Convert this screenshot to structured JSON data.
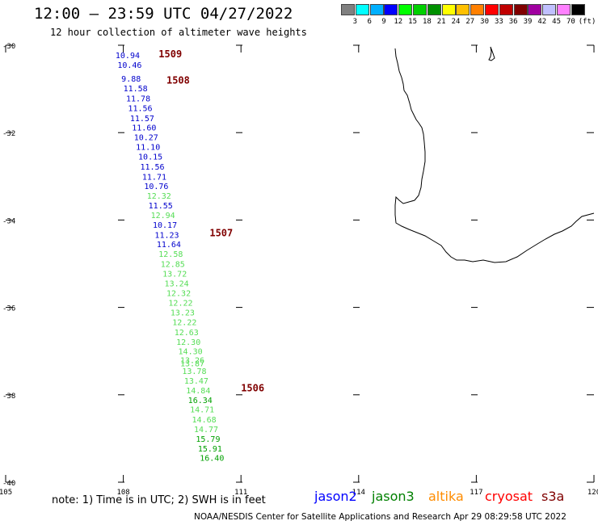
{
  "header": {
    "title": "12:00 – 23:59 UTC 04/27/2022",
    "subtitle": "12 hour collection of altimeter wave heights"
  },
  "legend": {
    "colors": [
      "#808080",
      "#00ffff",
      "#00b0ff",
      "#0000ff",
      "#00ff00",
      "#00d000",
      "#009000",
      "#ffff00",
      "#ffc000",
      "#ff8000",
      "#ff0000",
      "#c00000",
      "#800000",
      "#a000a0",
      "#c0c0ff",
      "#ff80ff",
      "#000000"
    ],
    "labels": [
      "3",
      "6",
      "9",
      "12",
      "15",
      "18",
      "21",
      "24",
      "27",
      "30",
      "33",
      "36",
      "39",
      "42",
      "45",
      "70",
      "(ft)"
    ]
  },
  "map_data": {
    "lon_range": [
      105,
      120
    ],
    "lat_range": [
      -40,
      -30
    ],
    "lon_ticks": [
      "105",
      "108",
      "111",
      "114",
      "117",
      "120"
    ],
    "lat_ticks": [
      "-30",
      "-32",
      "-34",
      "-36",
      "-38",
      "-40"
    ],
    "tracks": [
      {
        "label": "1509",
        "lat": -30.2,
        "lon": 108.9
      },
      {
        "label": "1508",
        "lat": -30.8,
        "lon": 109.1
      },
      {
        "label": "1507",
        "lat": -34.3,
        "lon": 110.2
      },
      {
        "label": "1506",
        "lat": -37.85,
        "lon": 111.0
      }
    ],
    "observations": [
      {
        "text": "10.94",
        "sat": "jason2",
        "lat": -30.22,
        "lon": 107.8
      },
      {
        "text": "10.46",
        "sat": "jason2",
        "lat": -30.44,
        "lon": 107.85
      },
      {
        "text": "9.88",
        "sat": "jason2",
        "lat": -30.76,
        "lon": 107.95
      },
      {
        "text": "11.58",
        "sat": "jason2",
        "lat": -30.98,
        "lon": 108.0
      },
      {
        "text": "11.78",
        "sat": "jason2",
        "lat": -31.21,
        "lon": 108.07
      },
      {
        "text": "11.56",
        "sat": "jason2",
        "lat": -31.43,
        "lon": 108.12
      },
      {
        "text": "11.57",
        "sat": "jason2",
        "lat": -31.66,
        "lon": 108.17
      },
      {
        "text": "11.60",
        "sat": "jason2",
        "lat": -31.88,
        "lon": 108.22
      },
      {
        "text": "10.27",
        "sat": "jason2",
        "lat": -32.1,
        "lon": 108.27
      },
      {
        "text": "11.10",
        "sat": "jason2",
        "lat": -32.32,
        "lon": 108.32
      },
      {
        "text": "10.15",
        "sat": "jason2",
        "lat": -32.54,
        "lon": 108.38
      },
      {
        "text": "11.56",
        "sat": "jason2",
        "lat": -32.77,
        "lon": 108.43
      },
      {
        "text": "11.71",
        "sat": "jason2",
        "lat": -33.0,
        "lon": 108.48
      },
      {
        "text": "10.76",
        "sat": "jason2",
        "lat": -33.22,
        "lon": 108.53
      },
      {
        "text": "12.32",
        "sat": "jason3",
        "lat": -33.44,
        "lon": 108.6
      },
      {
        "text": "11.55",
        "sat": "jason2",
        "lat": -33.66,
        "lon": 108.64
      },
      {
        "text": "12.94",
        "sat": "jason3",
        "lat": -33.88,
        "lon": 108.7
      },
      {
        "text": "10.17",
        "sat": "jason2",
        "lat": -34.1,
        "lon": 108.75
      },
      {
        "text": "11.23",
        "sat": "jason2",
        "lat": -34.33,
        "lon": 108.8
      },
      {
        "text": "11.64",
        "sat": "jason2",
        "lat": -34.55,
        "lon": 108.85
      },
      {
        "text": "12.58",
        "sat": "jason3",
        "lat": -34.77,
        "lon": 108.9
      },
      {
        "text": "12.85",
        "sat": "jason3",
        "lat": -35.0,
        "lon": 108.95
      },
      {
        "text": "13.72",
        "sat": "jason3",
        "lat": -35.22,
        "lon": 109.0
      },
      {
        "text": "13.24",
        "sat": "jason3",
        "lat": -35.44,
        "lon": 109.05
      },
      {
        "text": "12.32",
        "sat": "jason3",
        "lat": -35.67,
        "lon": 109.1
      },
      {
        "text": "12.22",
        "sat": "jason3",
        "lat": -35.89,
        "lon": 109.15
      },
      {
        "text": "13.23",
        "sat": "jason3",
        "lat": -36.11,
        "lon": 109.2
      },
      {
        "text": "12.22",
        "sat": "jason3",
        "lat": -36.33,
        "lon": 109.25
      },
      {
        "text": "12.63",
        "sat": "jason3",
        "lat": -36.56,
        "lon": 109.3
      },
      {
        "text": "12.30",
        "sat": "jason3",
        "lat": -36.78,
        "lon": 109.35
      },
      {
        "text": "14.30",
        "sat": "jason3",
        "lat": -37.0,
        "lon": 109.4
      },
      {
        "text": "13.26",
        "sat": "jason3",
        "lat": -37.2,
        "lon": 109.45
      },
      {
        "text": "13.87",
        "sat": "jason3",
        "lat": -37.27,
        "lon": 109.45
      },
      {
        "text": "13.78",
        "sat": "jason3",
        "lat": -37.45,
        "lon": 109.5
      },
      {
        "text": "13.47",
        "sat": "jason3",
        "lat": -37.67,
        "lon": 109.55
      },
      {
        "text": "14.84",
        "sat": "jason3",
        "lat": -37.89,
        "lon": 109.6
      },
      {
        "text": "16.34",
        "sat": "jason3_dark",
        "lat": -38.11,
        "lon": 109.65
      },
      {
        "text": "14.71",
        "sat": "jason3",
        "lat": -38.33,
        "lon": 109.7
      },
      {
        "text": "14.68",
        "sat": "jason3",
        "lat": -38.56,
        "lon": 109.75
      },
      {
        "text": "14.77",
        "sat": "jason3",
        "lat": -38.78,
        "lon": 109.8
      },
      {
        "text": "15.79",
        "sat": "jason3_dark",
        "lat": -39.0,
        "lon": 109.85
      },
      {
        "text": "15.91",
        "sat": "jason3_dark",
        "lat": -39.22,
        "lon": 109.9
      },
      {
        "text": "16.40",
        "sat": "jason3_dark",
        "lat": -39.44,
        "lon": 109.95
      }
    ]
  },
  "sat_colors": {
    "jason2": "#0000cc",
    "jason3": "#55dd55",
    "jason3_dark": "#00a000",
    "track": "#800000"
  },
  "footer": {
    "note": "note:  1) Time is in UTC;  2) SWH is in feet",
    "satellites": [
      {
        "name": "jason2",
        "color": "#0000ff"
      },
      {
        "name": "jason3",
        "color": "#008000"
      },
      {
        "name": "altika",
        "color": "#ff8c00"
      },
      {
        "name": "cryosat",
        "color": "#ff0000"
      },
      {
        "name": "s3a",
        "color": "#800000"
      }
    ],
    "credit": "NOAA/NESDIS Center for Satellite Applications and Research     Apr 29 08:29:58 UTC 2022"
  }
}
